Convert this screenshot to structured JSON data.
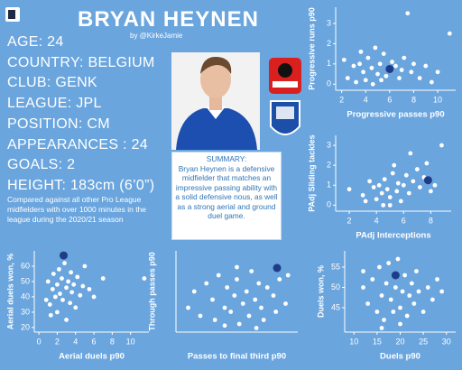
{
  "header": {
    "title": "BRYAN HEYNEN",
    "byline": "by @KirkeJamie"
  },
  "profile": [
    "AGE: 24",
    "COUNTRY: BELGIUM",
    "CLUB: GENK",
    "LEAGUE: JPL",
    "POSITION: CM",
    "APPEARANCES : 24",
    "GOALS: 2",
    "HEIGHT: 183cm (6’0”)"
  ],
  "note": "Compared against all other Pro League midfielders with over 1000 minutes in the league during the 2020/21 season",
  "summary": {
    "title": "SUMMARY:",
    "text": "Bryan Heynen is a defensive midfielder that matches an impressive passing ability with a solid defensive nous, as well as a strong aerial and ground duel game."
  },
  "chart_data": [
    {
      "type": "scatter",
      "xlabel": "Progressive passes p90",
      "ylabel": "Progressive runs p90",
      "xlim": [
        1.5,
        11.5
      ],
      "ylim": [
        -0.3,
        3.8
      ],
      "xticks": [
        2,
        4,
        6,
        8,
        10
      ],
      "yticks": [
        0,
        1,
        2,
        3
      ],
      "series": [
        {
          "color": "#ffffff",
          "x": [
            2.5,
            3,
            3.2,
            3.5,
            3.8,
            4,
            4.2,
            4.5,
            4.6,
            4.8,
            5,
            5.2,
            5.3,
            5.5,
            5.7,
            6.2,
            6.5,
            6.8,
            7,
            7.2,
            7.5,
            7.8,
            8,
            8.5,
            9,
            9.5,
            10,
            11,
            2.2,
            3.6
          ],
          "values": [
            0.3,
            0.9,
            0.1,
            1.0,
            0.6,
            0.2,
            1.3,
            0.8,
            0.0,
            1.8,
            0.5,
            1.0,
            0.2,
            1.5,
            0.4,
            1.1,
            0.9,
            0.3,
            0.7,
            1.3,
            3.5,
            0.6,
            1.0,
            0.3,
            0.9,
            0.1,
            0.6,
            2.5,
            1.2,
            1.6
          ]
        },
        {
          "color": "#1f3c88",
          "x": [
            6
          ],
          "values": [
            0.75
          ]
        }
      ]
    },
    {
      "type": "scatter",
      "xlabel": "PAdj Interceptions",
      "ylabel": "PAdj Sliding tackles",
      "xlim": [
        1,
        9.5
      ],
      "ylim": [
        -0.3,
        3.5
      ],
      "xticks": [
        2,
        4,
        6,
        8
      ],
      "yticks": [
        0,
        1,
        2,
        3
      ],
      "series": [
        {
          "color": "#ffffff",
          "x": [
            2,
            3,
            3.5,
            3.8,
            4,
            4.2,
            4.4,
            4.5,
            4.6,
            4.8,
            5,
            5.2,
            5.3,
            5.5,
            5.6,
            5.8,
            6,
            6.2,
            6.4,
            6.5,
            6.7,
            7,
            7.2,
            7.5,
            7.7,
            8,
            8.3,
            8.8,
            5,
            3.2
          ],
          "values": [
            0.8,
            0.5,
            1.2,
            0.9,
            0.3,
            1.0,
            0.6,
            0.0,
            1.3,
            0.8,
            0.4,
            1.6,
            2.0,
            0.7,
            1.1,
            0.2,
            1.0,
            1.5,
            0.6,
            2.6,
            1.2,
            1.8,
            0.9,
            1.4,
            2.1,
            0.7,
            1.0,
            3.0,
            0.0,
            0.2
          ]
        },
        {
          "color": "#1f3c88",
          "x": [
            7.8
          ],
          "values": [
            1.25
          ]
        }
      ]
    },
    {
      "type": "scatter",
      "xlabel": "Aerial duels p90",
      "ylabel": "Aerial duels won, %",
      "xlim": [
        -0.5,
        12
      ],
      "ylim": [
        17,
        70
      ],
      "xticks": [
        0,
        2,
        4,
        6,
        8,
        10
      ],
      "yticks": [
        20,
        30,
        40,
        50,
        60
      ],
      "series": [
        {
          "color": "#ffffff",
          "x": [
            1,
            1.2,
            1.5,
            1.6,
            1.8,
            2,
            2,
            2.2,
            2.3,
            2.5,
            2.6,
            2.8,
            3,
            3,
            3.2,
            3.4,
            3.5,
            3.6,
            3.8,
            4,
            4.2,
            4.5,
            4.8,
            5,
            5.5,
            6,
            7,
            0.8,
            1.3,
            11.5
          ],
          "values": [
            50,
            35,
            45,
            55,
            40,
            30,
            48,
            58,
            42,
            52,
            38,
            62,
            46,
            25,
            50,
            36,
            56,
            43,
            48,
            33,
            53,
            41,
            47,
            60,
            45,
            40,
            52,
            38,
            28,
            52
          ]
        },
        {
          "color": "#1f3c88",
          "x": [
            2.7
          ],
          "values": [
            67
          ]
        }
      ]
    },
    {
      "type": "scatter",
      "xlabel": "Passes to final third p90",
      "ylabel": "Through passes p90",
      "xlim": [
        0,
        10
      ],
      "ylim": [
        0,
        10
      ],
      "series": [
        {
          "color": "#ffffff",
          "x": [
            1,
            1.5,
            2,
            2.5,
            3,
            3.2,
            3.5,
            4,
            4.2,
            4.5,
            4.8,
            5,
            5.2,
            5.5,
            5.8,
            6,
            6.2,
            6.5,
            6.8,
            7,
            7.2,
            7.5,
            8,
            8.2,
            8.5,
            9,
            5,
            4,
            6.6,
            9.2
          ],
          "values": [
            3,
            5,
            2,
            6,
            4,
            1.5,
            7,
            3,
            5.5,
            2.5,
            4.5,
            6.5,
            1,
            3.5,
            5,
            2,
            7.5,
            4,
            6,
            3,
            1.5,
            5.5,
            4.5,
            2.5,
            6.5,
            3.5,
            8,
            0.8,
            0.5,
            7
          ]
        },
        {
          "color": "#1f3c88",
          "x": [
            8.3
          ],
          "values": [
            7.9
          ]
        }
      ]
    },
    {
      "type": "scatter",
      "xlabel": "Duels p90",
      "ylabel": "Duels won, %",
      "xlim": [
        8,
        32
      ],
      "ylim": [
        39,
        59
      ],
      "xticks": [
        10,
        15,
        20,
        25,
        30
      ],
      "yticks": [
        45,
        50,
        55
      ],
      "series": [
        {
          "color": "#ffffff",
          "x": [
            12,
            13,
            14,
            15,
            15.5,
            16,
            16.5,
            17,
            17.5,
            18,
            18.5,
            19,
            19.5,
            20,
            20.5,
            21,
            21.5,
            22,
            22.5,
            23,
            23.5,
            24,
            25,
            26,
            27,
            28,
            29,
            16,
            20,
            12
          ],
          "values": [
            50,
            46,
            52,
            44,
            55,
            48,
            42,
            51,
            56,
            47,
            44,
            50,
            57,
            45,
            49,
            53,
            43,
            48,
            51,
            46,
            54,
            49,
            44,
            50,
            47,
            52,
            49,
            40,
            41,
            54
          ]
        },
        {
          "color": "#1f3c88",
          "x": [
            19
          ],
          "values": [
            53
          ]
        }
      ]
    }
  ]
}
